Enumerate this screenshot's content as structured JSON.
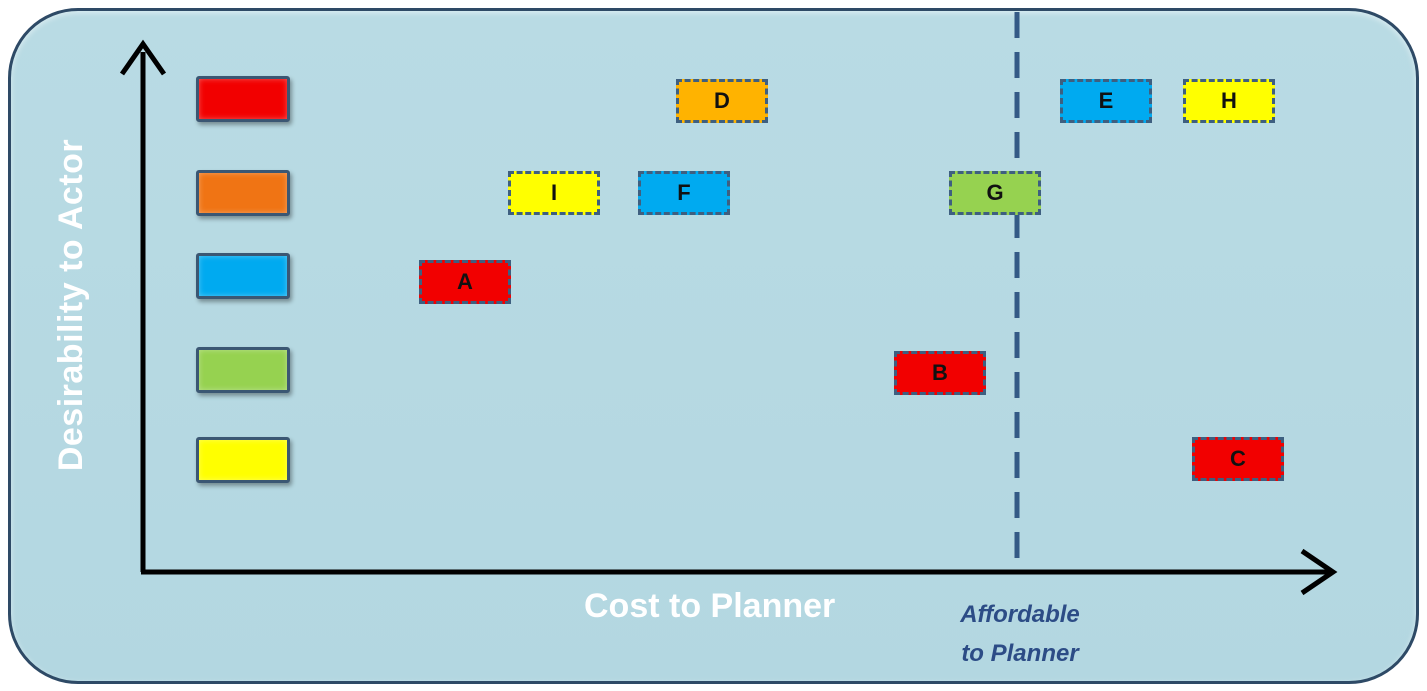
{
  "colors": {
    "red": "#f20000",
    "orange": "#f07414",
    "blue": "#00aaf0",
    "green": "#96d250",
    "yellow": "#ffff00",
    "gold": "#ffb300",
    "divider": "#345a86"
  },
  "axes": {
    "y_label": "Desirability to Actor",
    "x_label": "Cost to Planner"
  },
  "threshold": {
    "label_line1": "Affordable",
    "label_line2": "to Planner"
  },
  "legend": [
    {
      "color": "#f20000"
    },
    {
      "color": "#f07414"
    },
    {
      "color": "#00aaf0"
    },
    {
      "color": "#96d250"
    },
    {
      "color": "#ffff00"
    }
  ],
  "items": [
    {
      "label": "D",
      "color": "#ffb300"
    },
    {
      "label": "E",
      "color": "#00aaf0"
    },
    {
      "label": "H",
      "color": "#ffff00"
    },
    {
      "label": "I",
      "color": "#ffff00"
    },
    {
      "label": "F",
      "color": "#00aaf0"
    },
    {
      "label": "G",
      "color": "#96d250"
    },
    {
      "label": "A",
      "color": "#f20000"
    },
    {
      "label": "B",
      "color": "#f20000"
    },
    {
      "label": "C",
      "color": "#f20000"
    }
  ]
}
